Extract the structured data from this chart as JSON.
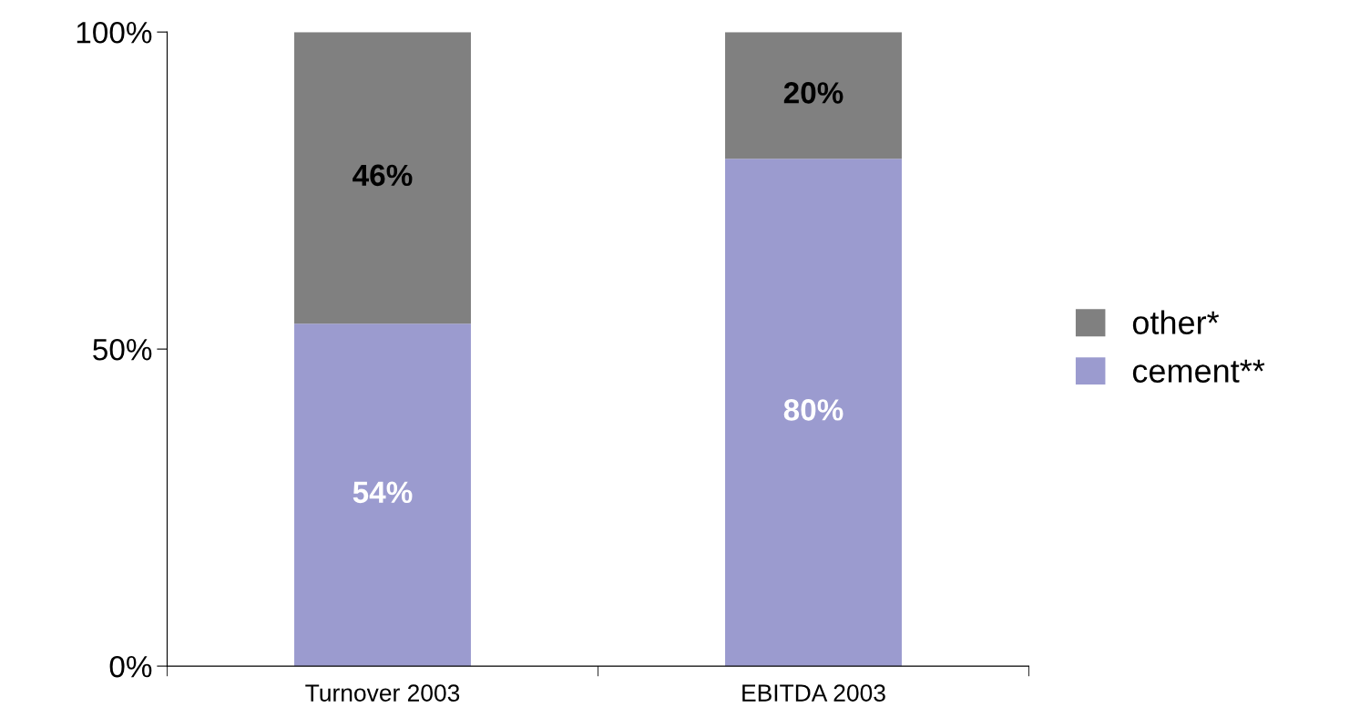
{
  "chart_data": {
    "type": "bar",
    "stacked": true,
    "categories": [
      "Turnover 2003",
      "EBITDA 2003"
    ],
    "series": [
      {
        "name": "cement**",
        "color": "#9b9bcf",
        "values": [
          54,
          80
        ],
        "value_labels": [
          "54%",
          "80%"
        ]
      },
      {
        "name": "other*",
        "color": "#808080",
        "values": [
          46,
          20
        ],
        "value_labels": [
          "46%",
          "20%"
        ]
      }
    ],
    "ylim": [
      0,
      100
    ],
    "yticks": [
      {
        "value": 0,
        "label": "0%"
      },
      {
        "value": 50,
        "label": "50%"
      },
      {
        "value": 100,
        "label": "100%"
      }
    ],
    "grid": false,
    "legend": "right"
  }
}
